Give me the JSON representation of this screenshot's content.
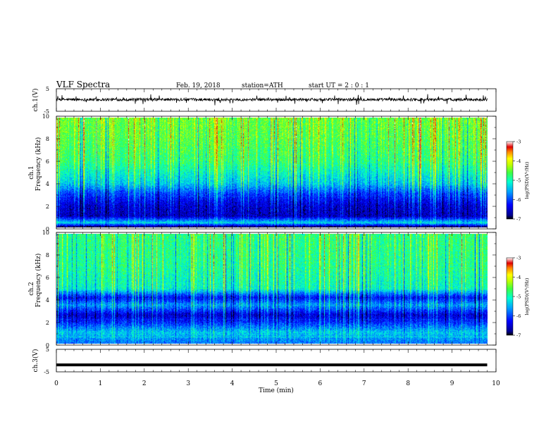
{
  "header": {
    "title": "VLF  Spectra",
    "date": "Feb. 19, 2018",
    "station": "station=ATH",
    "start": "start  UT  =   2  : 0   : 1"
  },
  "chart_data": [
    {
      "type": "line",
      "panel": "ch1-waveform",
      "ylabel": "ch.1(V)",
      "ylim": [
        -5,
        5
      ],
      "yticks": [
        "5",
        "-5"
      ],
      "xlim": [
        0,
        10
      ],
      "x_extent_min": 9.8,
      "baseline_v": 0.2,
      "color": "#000000"
    },
    {
      "type": "heatmap",
      "panel": "ch1-spectrogram",
      "ylabel": "ch.1\nFrequency (kHz)",
      "ylim": [
        0,
        10
      ],
      "yticks": [
        "0",
        "2",
        "4",
        "6",
        "8",
        "10"
      ],
      "xlim": [
        0,
        10
      ],
      "x_extent_min": 9.8,
      "colorbar": {
        "label": "log(PSD)(V²/Hz)",
        "range": [
          -7,
          -3
        ],
        "ticks": [
          "-3",
          "-4",
          "-5",
          "-6",
          "-7"
        ]
      },
      "profile_log_psd": [
        {
          "f_khz": 0.0,
          "value": -7.0
        },
        {
          "f_khz": 0.4,
          "value": -5.3
        },
        {
          "f_khz": 1.0,
          "value": -6.6
        },
        {
          "f_khz": 2.0,
          "value": -6.5
        },
        {
          "f_khz": 3.0,
          "value": -6.1
        },
        {
          "f_khz": 4.0,
          "value": -5.4
        },
        {
          "f_khz": 6.0,
          "value": -4.8
        },
        {
          "f_khz": 8.0,
          "value": -4.6
        },
        {
          "f_khz": 10.0,
          "value": -4.5
        }
      ]
    },
    {
      "type": "heatmap",
      "panel": "ch2-spectrogram",
      "ylabel": "ch.2\nFrequency (kHz)",
      "ylim": [
        0,
        10
      ],
      "yticks": [
        "0",
        "2",
        "4",
        "6",
        "8",
        "10"
      ],
      "xlim": [
        0,
        10
      ],
      "x_extent_min": 9.8,
      "colorbar": {
        "label": "log(PSD)(V²/Hz)",
        "range": [
          -7,
          -3
        ],
        "ticks": [
          "-3",
          "-4",
          "-5",
          "-6",
          "-7"
        ]
      },
      "profile_log_psd": [
        {
          "f_khz": 0.0,
          "value": -5.8
        },
        {
          "f_khz": 1.0,
          "value": -5.4
        },
        {
          "f_khz": 2.0,
          "value": -6.2
        },
        {
          "f_khz": 2.6,
          "value": -6.5
        },
        {
          "f_khz": 3.5,
          "value": -5.6
        },
        {
          "f_khz": 4.2,
          "value": -6.3
        },
        {
          "f_khz": 5.0,
          "value": -5.1
        },
        {
          "f_khz": 7.0,
          "value": -4.9
        },
        {
          "f_khz": 10.0,
          "value": -4.8
        }
      ]
    },
    {
      "type": "line",
      "panel": "ch3-waveform",
      "ylabel": "ch.3(V)",
      "ylim": [
        -5,
        5
      ],
      "yticks": [
        "5",
        "-5"
      ],
      "xlim": [
        0,
        10
      ],
      "x_extent_min": 9.8,
      "baseline_v": -1.9,
      "color": "#000000"
    }
  ],
  "xaxis": {
    "label": "Time  (min)",
    "ticks": [
      "0",
      "1",
      "2",
      "3",
      "4",
      "5",
      "6",
      "7",
      "8",
      "9",
      "10"
    ]
  }
}
